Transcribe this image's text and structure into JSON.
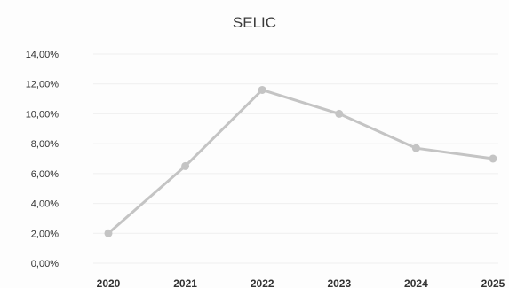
{
  "chart_data": {
    "type": "line",
    "title": "SELIC",
    "xlabel": "",
    "ylabel": "",
    "categories": [
      "2020",
      "2021",
      "2022",
      "2023",
      "2024",
      "2025"
    ],
    "series": [
      {
        "values": [
          2.0,
          6.5,
          11.6,
          10.0,
          7.7,
          7.0
        ]
      }
    ],
    "ylim": [
      0,
      14
    ],
    "yticks": [
      "0,00%",
      "2,00%",
      "4,00%",
      "6,00%",
      "8,00%",
      "10,00%",
      "12,00%",
      "14,00%"
    ],
    "grid": true,
    "legend": "none",
    "colors": {
      "line": "#c4c4c4",
      "marker": "#c4c4c4",
      "grid": "#efefef"
    }
  }
}
